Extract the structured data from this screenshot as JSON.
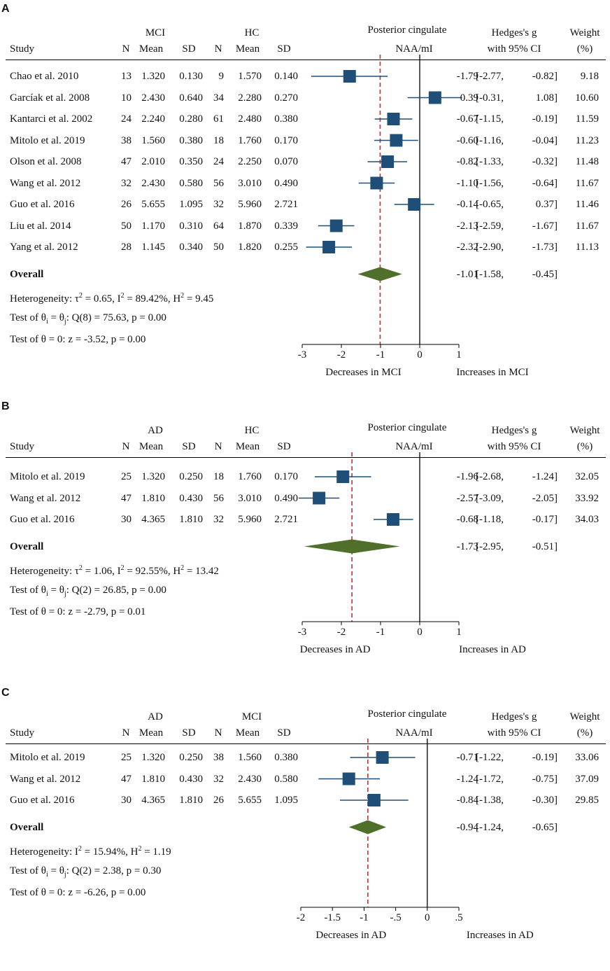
{
  "chart_data": [
    {
      "type": "forest",
      "label": "A",
      "title_line1": "Posterior cingulate",
      "title_line2": "NAA/mI",
      "group1": "MCI",
      "group2": "HC",
      "col_study": "Study",
      "col_n": "N",
      "col_mean": "Mean",
      "col_sd": "SD",
      "col_g1": "Hedges's g",
      "col_g2": "with 95% CI",
      "col_w1": "Weight",
      "col_w2": "(%)",
      "xlim": [
        -3,
        1
      ],
      "ticks": [
        -3,
        -2,
        -1,
        0,
        1
      ],
      "tick_labels": [
        "-3",
        "-2",
        "-1",
        "0",
        "1"
      ],
      "reference_line": -1.01,
      "xlabel_left": "Decreases in MCI",
      "xlabel_right": "Increases in MCI",
      "studies": [
        {
          "name": "Chao et al. 2010",
          "n1": "13",
          "m1": "1.320",
          "sd1": "0.130",
          "n2": "9",
          "m2": "1.570",
          "sd2": "0.140",
          "g": -1.79,
          "lo": -2.77,
          "hi": -0.82,
          "g_text": "-1.79",
          "lo_text": "-2.77,",
          "hi_text": "-0.82]",
          "weight": "9.18"
        },
        {
          "name": "Garcíak et al. 2008",
          "n1": "10",
          "m1": "2.430",
          "sd1": "0.640",
          "n2": "34",
          "m2": "2.280",
          "sd2": "0.270",
          "g": 0.39,
          "lo": -0.31,
          "hi": 1.08,
          "g_text": "0.39",
          "lo_text": "-0.31,",
          "hi_text": "1.08]",
          "weight": "10.60"
        },
        {
          "name": "Kantarci et al. 2002",
          "n1": "24",
          "m1": "2.240",
          "sd1": "0.280",
          "n2": "61",
          "m2": "2.480",
          "sd2": "0.380",
          "g": -0.67,
          "lo": -1.15,
          "hi": -0.19,
          "g_text": "-0.67",
          "lo_text": "-1.15,",
          "hi_text": "-0.19]",
          "weight": "11.59"
        },
        {
          "name": "Mitolo et al. 2019",
          "n1": "38",
          "m1": "1.560",
          "sd1": "0.380",
          "n2": "18",
          "m2": "1.760",
          "sd2": "0.170",
          "g": -0.6,
          "lo": -1.16,
          "hi": -0.04,
          "g_text": "-0.60",
          "lo_text": "-1.16,",
          "hi_text": "-0.04]",
          "weight": "11.23"
        },
        {
          "name": "Olson et al. 2008",
          "n1": "47",
          "m1": "2.010",
          "sd1": "0.350",
          "n2": "24",
          "m2": "2.250",
          "sd2": "0.070",
          "g": -0.82,
          "lo": -1.33,
          "hi": -0.32,
          "g_text": "-0.82",
          "lo_text": "-1.33,",
          "hi_text": "-0.32]",
          "weight": "11.48"
        },
        {
          "name": "Wang et al. 2012",
          "n1": "32",
          "m1": "2.430",
          "sd1": "0.580",
          "n2": "56",
          "m2": "3.010",
          "sd2": "0.490",
          "g": -1.1,
          "lo": -1.56,
          "hi": -0.64,
          "g_text": "-1.10",
          "lo_text": "-1.56,",
          "hi_text": "-0.64]",
          "weight": "11.67"
        },
        {
          "name": "Guo et al. 2016",
          "n1": "26",
          "m1": "5.655",
          "sd1": "1.095",
          "n2": "32",
          "m2": "5.960",
          "sd2": "2.721",
          "g": -0.14,
          "lo": -0.65,
          "hi": 0.37,
          "g_text": "-0.14",
          "lo_text": "-0.65,",
          "hi_text": "0.37]",
          "weight": "11.46"
        },
        {
          "name": "Liu et al. 2014",
          "n1": "50",
          "m1": "1.170",
          "sd1": "0.310",
          "n2": "64",
          "m2": "1.870",
          "sd2": "0.339",
          "g": -2.13,
          "lo": -2.59,
          "hi": -1.67,
          "g_text": "-2.13",
          "lo_text": "-2.59,",
          "hi_text": "-1.67]",
          "weight": "11.67"
        },
        {
          "name": "Yang et al. 2012",
          "n1": "28",
          "m1": "1.145",
          "sd1": "0.340",
          "n2": "50",
          "m2": "1.820",
          "sd2": "0.255",
          "g": -2.32,
          "lo": -2.9,
          "hi": -1.73,
          "g_text": "-2.32",
          "lo_text": "-2.90,",
          "hi_text": "-1.73]",
          "weight": "11.13"
        }
      ],
      "overall": {
        "label": "Overall",
        "g": -1.01,
        "lo": -1.58,
        "hi": -0.45,
        "g_text": "-1.01",
        "lo_text": "-1.58,",
        "hi_text": "-0.45]"
      },
      "het": {
        "h1": {
          "prefix": "Heterogeneity: ",
          "t1": "τ",
          "s1": "2",
          "t2": " = 0.65, I",
          "s2": "2",
          "t3": " = 89.42%, H",
          "s3": "2",
          "t4": " = 9.45"
        },
        "h2": {
          "prefix": "Test of θ",
          "sub1": "i",
          "mid": " = θ",
          "sub2": "j",
          "rest": ": Q(8) = 75.63, p = 0.00"
        },
        "h3": "Test of θ = 0: z = -3.52, p = 0.00"
      }
    },
    {
      "type": "forest",
      "label": "B",
      "title_line1": "Posterior cingulate",
      "title_line2": "NAA/mI",
      "group1": "AD",
      "group2": "HC",
      "col_study": "Study",
      "col_n": "N",
      "col_mean": "Mean",
      "col_sd": "SD",
      "col_g1": "Hedges's g",
      "col_g2": "with 95% CI",
      "col_w1": "Weight",
      "col_w2": "(%)",
      "xlim": [
        -3,
        1
      ],
      "ticks": [
        -3,
        -2,
        -1,
        0,
        1
      ],
      "tick_labels": [
        "-3",
        "-2",
        "-1",
        "0",
        "1"
      ],
      "reference_line": -1.73,
      "xlabel_left": "Decreases in AD",
      "xlabel_right": "Increases in AD",
      "studies": [
        {
          "name": "Mitolo et al. 2019",
          "n1": "25",
          "m1": "1.320",
          "sd1": "0.250",
          "n2": "18",
          "m2": "1.760",
          "sd2": "0.170",
          "g": -1.96,
          "lo": -2.68,
          "hi": -1.24,
          "g_text": "-1.96",
          "lo_text": "-2.68,",
          "hi_text": "-1.24]",
          "weight": "32.05"
        },
        {
          "name": "Wang et al. 2012",
          "n1": "47",
          "m1": "1.810",
          "sd1": "0.430",
          "n2": "56",
          "m2": "3.010",
          "sd2": "0.490",
          "g": -2.57,
          "lo": -3.09,
          "hi": -2.05,
          "g_text": "-2.57",
          "lo_text": "-3.09,",
          "hi_text": "-2.05]",
          "weight": "33.92"
        },
        {
          "name": "Guo et al. 2016",
          "n1": "30",
          "m1": "4.365",
          "sd1": "1.810",
          "n2": "32",
          "m2": "5.960",
          "sd2": "2.721",
          "g": -0.68,
          "lo": -1.18,
          "hi": -0.17,
          "g_text": "-0.68",
          "lo_text": "-1.18,",
          "hi_text": "-0.17]",
          "weight": "34.03"
        }
      ],
      "overall": {
        "label": "Overall",
        "g": -1.73,
        "lo": -2.95,
        "hi": -0.51,
        "g_text": "-1.73",
        "lo_text": "-2.95,",
        "hi_text": "-0.51]"
      },
      "het": {
        "h1": {
          "prefix": "Heterogeneity: ",
          "t1": "τ",
          "s1": "2",
          "t2": " = 1.06, I",
          "s2": "2",
          "t3": " = 92.55%, H",
          "s3": "2",
          "t4": " = 13.42"
        },
        "h2": {
          "prefix": "Test of θ",
          "sub1": "i",
          "mid": " = θ",
          "sub2": "j",
          "rest": ": Q(2) = 26.85, p = 0.00"
        },
        "h3": "Test of θ = 0: z = -2.79, p = 0.01"
      }
    },
    {
      "type": "forest",
      "label": "C",
      "title_line1": "Posterior cingulate",
      "title_line2": "NAA/mI",
      "group1": "AD",
      "group2": "MCI",
      "col_study": "Study",
      "col_n": "N",
      "col_mean": "Mean",
      "col_sd": "SD",
      "col_g1": "Hedges's g",
      "col_g2": "with 95% CI",
      "col_w1": "Weight",
      "col_w2": "(%)",
      "xlim": [
        -2,
        0.5
      ],
      "ticks": [
        -2,
        -1.5,
        -1,
        -0.5,
        0,
        0.5
      ],
      "tick_labels": [
        "-2",
        "-1.5",
        "-1",
        "-.5",
        "0",
        ".5"
      ],
      "reference_line": -0.94,
      "xlabel_left": "Decreases in AD",
      "xlabel_right": "Increases in AD",
      "studies": [
        {
          "name": "Mitolo et al. 2019",
          "n1": "25",
          "m1": "1.320",
          "sd1": "0.250",
          "n2": "38",
          "m2": "1.560",
          "sd2": "0.380",
          "g": -0.71,
          "lo": -1.22,
          "hi": -0.19,
          "g_text": "-0.71",
          "lo_text": "-1.22,",
          "hi_text": "-0.19]",
          "weight": "33.06"
        },
        {
          "name": "Wang et al. 2012",
          "n1": "47",
          "m1": "1.810",
          "sd1": "0.430",
          "n2": "32",
          "m2": "2.430",
          "sd2": "0.580",
          "g": -1.24,
          "lo": -1.72,
          "hi": -0.75,
          "g_text": "-1.24",
          "lo_text": "-1.72,",
          "hi_text": "-0.75]",
          "weight": "37.09"
        },
        {
          "name": "Guo et al. 2016",
          "n1": "30",
          "m1": "4.365",
          "sd1": "1.810",
          "n2": "26",
          "m2": "5.655",
          "sd2": "1.095",
          "g": -0.84,
          "lo": -1.38,
          "hi": -0.3,
          "g_text": "-0.84",
          "lo_text": "-1.38,",
          "hi_text": "-0.30]",
          "weight": "29.85"
        }
      ],
      "overall": {
        "label": "Overall",
        "g": -0.94,
        "lo": -1.24,
        "hi": -0.65,
        "g_text": "-0.94",
        "lo_text": "-1.24,",
        "hi_text": "-0.65]"
      },
      "het": {
        "h1": {
          "prefix": "Heterogeneity: ",
          "t1": "",
          "s1": "",
          "t2": "I",
          "s2": "2",
          "t3": " = 15.94%, H",
          "s3": "2",
          "t4": " = 1.19"
        },
        "h2": {
          "prefix": "Test of θ",
          "sub1": "i",
          "mid": " = θ",
          "sub2": "j",
          "rest": ": Q(2) = 2.38, p = 0.30"
        },
        "h3": "Test of θ = 0: z = -6.26, p = 0.00"
      }
    }
  ],
  "colors": {
    "marker": "#1f4e79",
    "ci_line": "#1f4e79",
    "diamond": "#4f6f2a",
    "reference": "#d62728",
    "axis": "#000000"
  }
}
